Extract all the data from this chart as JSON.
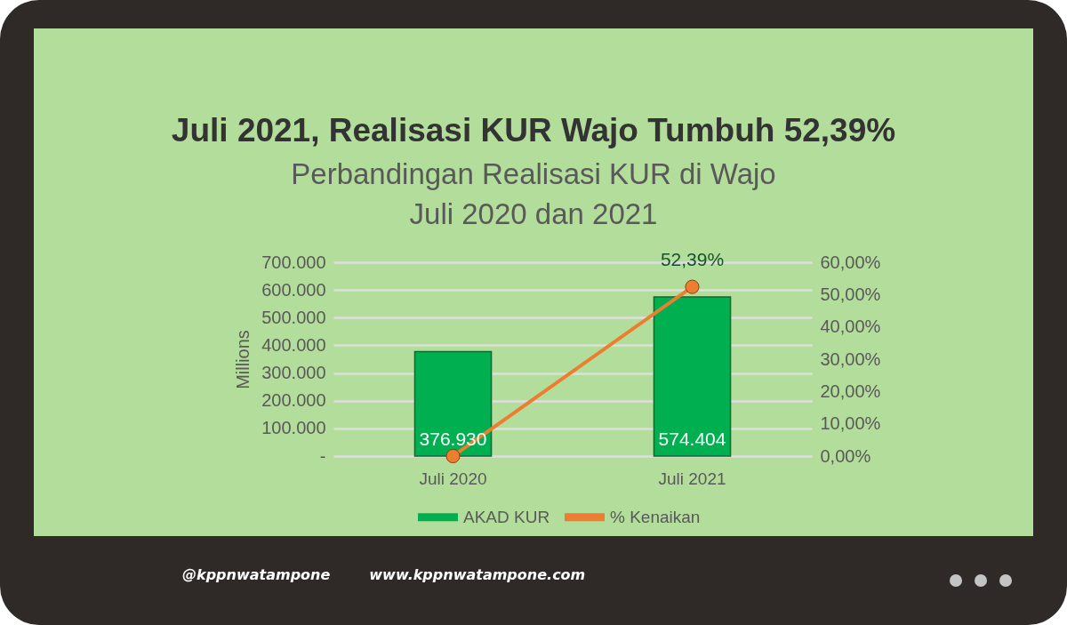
{
  "chart_data": {
    "type": "bar",
    "title": "Juli 2021, Realisasi KUR Wajo Tumbuh 52,39%",
    "subtitle": "Perbandingan Realisasi KUR di Wajo\nJuli 2020 dan 2021",
    "ylabel": "Millions",
    "categories": [
      "Juli 2020",
      "Juli 2021"
    ],
    "series": [
      {
        "name": "AKAD KUR",
        "color": "#00b050",
        "values": [
          376930,
          574404
        ],
        "value_labels": [
          "376.930",
          "574.404"
        ]
      },
      {
        "name": "% Kenaikan",
        "type": "line",
        "axis": "y2",
        "color": "#ed7d31",
        "values": [
          0,
          52.39
        ],
        "value_labels": [
          null,
          "52,39%"
        ]
      }
    ],
    "ylim": [
      0,
      700000
    ],
    "yticks": [
      {
        "value": 0,
        "label": "-"
      },
      {
        "value": 100000,
        "label": "100.000"
      },
      {
        "value": 200000,
        "label": "200.000"
      },
      {
        "value": 300000,
        "label": "300.000"
      },
      {
        "value": 400000,
        "label": "400.000"
      },
      {
        "value": 500000,
        "label": "500.000"
      },
      {
        "value": 600000,
        "label": "600.000"
      },
      {
        "value": 700000,
        "label": "700.000"
      }
    ],
    "y2lim": [
      0,
      60
    ],
    "y2ticks": [
      {
        "value": 0,
        "label": "0,00%"
      },
      {
        "value": 10,
        "label": "10,00%"
      },
      {
        "value": 20,
        "label": "20,00%"
      },
      {
        "value": 30,
        "label": "30,00%"
      },
      {
        "value": 40,
        "label": "40,00%"
      },
      {
        "value": 50,
        "label": "50,00%"
      },
      {
        "value": 60,
        "label": "60,00%"
      }
    ],
    "grid": "y",
    "legend": "bottom",
    "marker": "circle",
    "annotations": [
      "@kppnwatampone",
      "www.kppnwatampone.com"
    ]
  }
}
